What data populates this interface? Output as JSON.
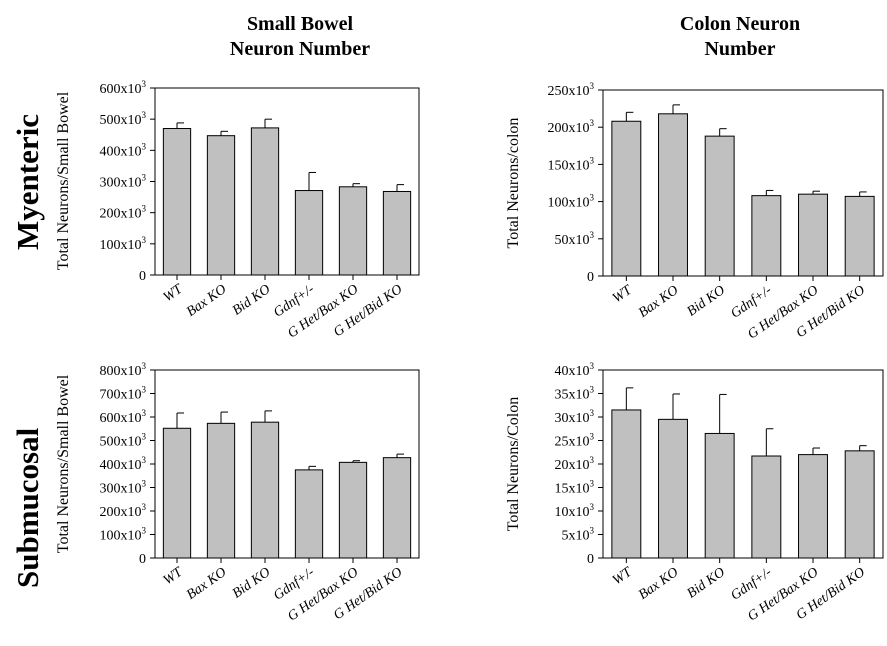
{
  "titles": {
    "col_left": [
      "Small Bowel",
      "Neuron Number"
    ],
    "col_right": [
      "Colon Neuron",
      "Number"
    ],
    "row_top": "Myenteric",
    "row_bottom": "Submucosal"
  },
  "chart_data": [
    {
      "type": "bar",
      "title": "",
      "ylabel": "Total Neurons/Small Bowel",
      "categories": [
        "WT",
        "Bax KO",
        "Bid KO",
        "Gdnf+/-",
        "G Het/Bax KO",
        "G Het/Bid KO"
      ],
      "values": [
        470000,
        447000,
        472000,
        271000,
        283000,
        268000
      ],
      "errors": [
        18000,
        14000,
        28000,
        58000,
        10000,
        22000
      ],
      "ylim": [
        0,
        600000
      ],
      "yticks": [
        "0",
        "100x10³",
        "200x10³",
        "300x10³",
        "400x10³",
        "500x10³",
        "600x10³"
      ],
      "bar_color": "#c0c0c0"
    },
    {
      "type": "bar",
      "title": "",
      "ylabel": "Total Neurons/colon",
      "categories": [
        "WT",
        "Bax KO",
        "Bid KO",
        "Gdnf+/-",
        "G Het/Bax KO",
        "G Het/Bid KO"
      ],
      "values": [
        208000,
        218000,
        188000,
        108000,
        110000,
        107000
      ],
      "errors": [
        12000,
        12000,
        10000,
        7000,
        4000,
        6000
      ],
      "ylim": [
        0,
        250000
      ],
      "yticks": [
        "0",
        "50x10³",
        "100x10³",
        "150x10³",
        "200x10³",
        "250x10³"
      ],
      "bar_color": "#c0c0c0"
    },
    {
      "type": "bar",
      "title": "",
      "ylabel": "Total Neurons/Small Bowel",
      "categories": [
        "WT",
        "Bax KO",
        "Bid KO",
        "Gdnf+/-",
        "G Het/Bax KO",
        "G Het/Bid KO"
      ],
      "values": [
        552000,
        573000,
        578000,
        375000,
        407000,
        427000
      ],
      "errors": [
        65000,
        48000,
        48000,
        15000,
        7000,
        15000
      ],
      "ylim": [
        0,
        800000
      ],
      "yticks": [
        "0",
        "100x10³",
        "200x10³",
        "300x10³",
        "400x10³",
        "500x10³",
        "600x10³",
        "700x10³",
        "800x10³"
      ],
      "bar_color": "#c0c0c0"
    },
    {
      "type": "bar",
      "title": "",
      "ylabel": "Total Neurons/Colon",
      "categories": [
        "WT",
        "Bax KO",
        "Bid KO",
        "Gdnf+/-",
        "G Het/Bax KO",
        "G Het/Bid KO"
      ],
      "values": [
        31500,
        29500,
        26500,
        21700,
        22000,
        22800
      ],
      "errors": [
        4700,
        5400,
        8300,
        5800,
        1400,
        1100
      ],
      "ylim": [
        0,
        40000
      ],
      "yticks": [
        "0",
        "5x10³",
        "10x10³",
        "15x10³",
        "20x10³",
        "25x10³",
        "30x10³",
        "35x10³",
        "40x10³"
      ],
      "bar_color": "#c0c0c0"
    }
  ]
}
